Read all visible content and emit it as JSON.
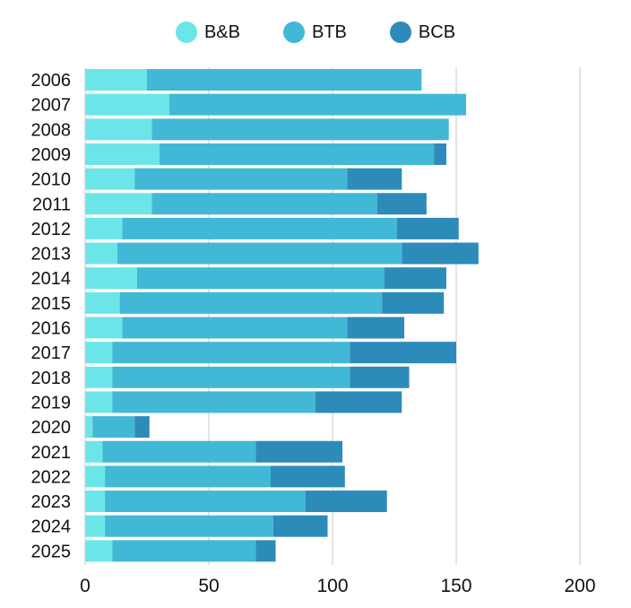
{
  "chart_data": {
    "type": "bar",
    "orientation": "horizontal",
    "stacked": true,
    "categories": [
      "2006",
      "2007",
      "2008",
      "2009",
      "2010",
      "2011",
      "2012",
      "2013",
      "2014",
      "2015",
      "2016",
      "2017",
      "2018",
      "2019",
      "2020",
      "2021",
      "2022",
      "2023",
      "2024",
      "2025"
    ],
    "series": [
      {
        "name": "B&B",
        "color": "#6ce5e8",
        "values": [
          25,
          34,
          27,
          30,
          20,
          27,
          15,
          13,
          21,
          14,
          15,
          11,
          11,
          11,
          3,
          7,
          8,
          8,
          8,
          11
        ]
      },
      {
        "name": "BTB",
        "color": "#41b8d5",
        "values": [
          111,
          120,
          120,
          111,
          86,
          91,
          111,
          115,
          100,
          106,
          91,
          96,
          96,
          82,
          17,
          62,
          67,
          81,
          68,
          58
        ]
      },
      {
        "name": "BCB",
        "color": "#2d8bba",
        "values": [
          0,
          0,
          0,
          5,
          22,
          20,
          25,
          31,
          25,
          25,
          23,
          43,
          24,
          35,
          6,
          35,
          30,
          33,
          22,
          8
        ]
      }
    ],
    "xlim": [
      0,
      200
    ],
    "xticks": [
      "0",
      "50",
      "100",
      "150",
      "200"
    ],
    "grid": true,
    "legend": "top",
    "title": "",
    "xlabel": "",
    "ylabel": ""
  }
}
